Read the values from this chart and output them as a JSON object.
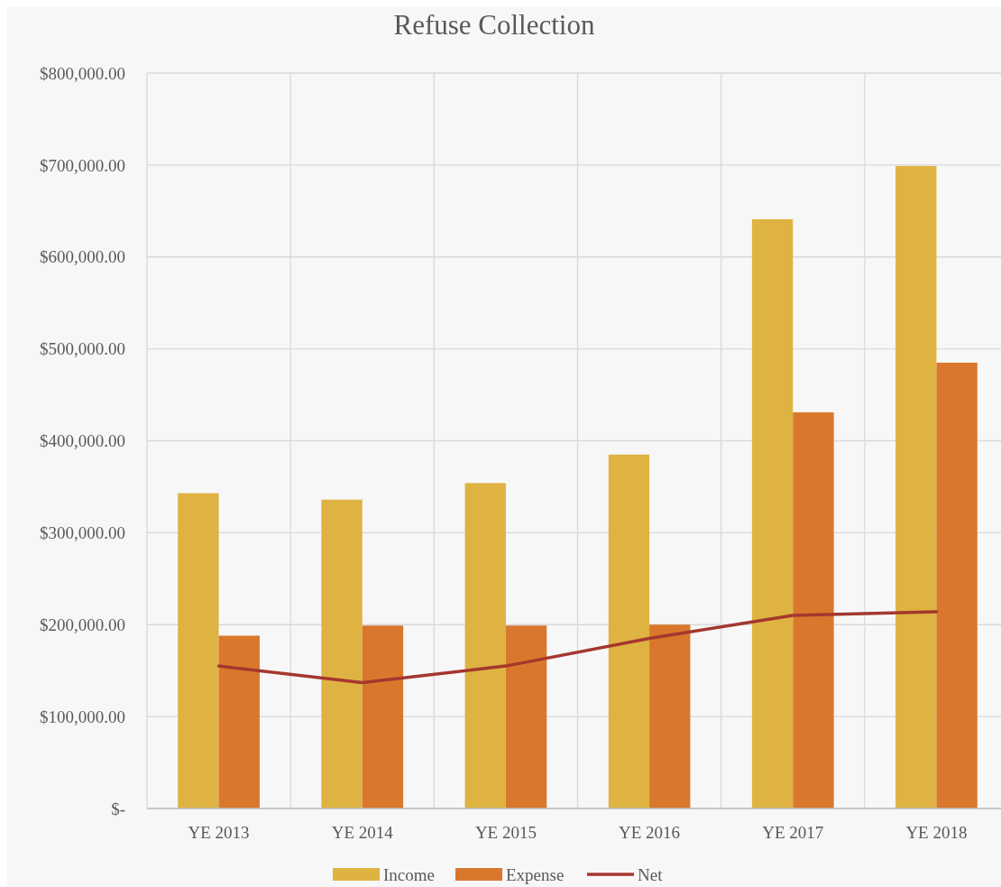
{
  "chart_data": {
    "type": "bar",
    "title": "Refuse Collection",
    "categories": [
      "YE 2013",
      "YE 2014",
      "YE 2015",
      "YE 2016",
      "YE 2017",
      "YE 2018"
    ],
    "series": [
      {
        "name": "Income",
        "color": "#dfb342",
        "values": [
          343000,
          336000,
          354000,
          385000,
          641000,
          699000
        ]
      },
      {
        "name": "Expense",
        "color": "#d9782d",
        "values": [
          188000,
          199000,
          199000,
          200000,
          431000,
          485000
        ]
      },
      {
        "name": "Net",
        "type": "line",
        "color": "#a5372e",
        "values": [
          155000,
          137000,
          155000,
          185000,
          210000,
          214000
        ]
      }
    ],
    "ylim": [
      0,
      800000
    ],
    "yticks": [
      {
        "value": 0,
        "label": "$-"
      },
      {
        "value": 100000,
        "label": "$100,000.00"
      },
      {
        "value": 200000,
        "label": "$200,000.00"
      },
      {
        "value": 300000,
        "label": "$300,000.00"
      },
      {
        "value": 400000,
        "label": "$400,000.00"
      },
      {
        "value": 500000,
        "label": "$500,000.00"
      },
      {
        "value": 600000,
        "label": "$600,000.00"
      },
      {
        "value": 700000,
        "label": "$700,000.00"
      },
      {
        "value": 800000,
        "label": "$800,000.00"
      }
    ],
    "grid": true,
    "legend": "bottom"
  }
}
